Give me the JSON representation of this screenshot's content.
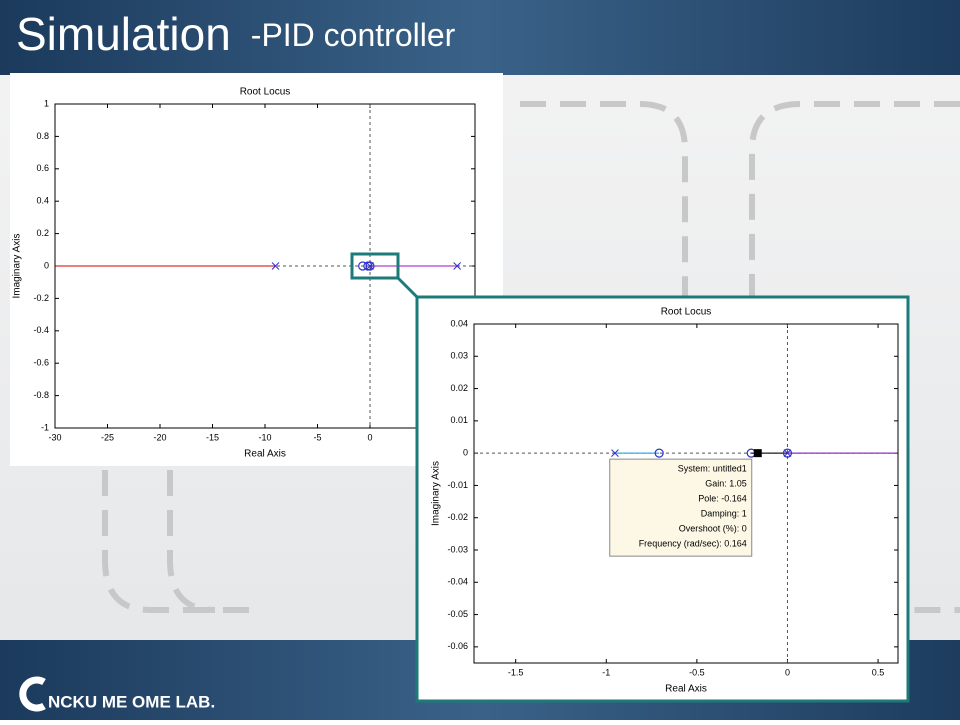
{
  "title": "Simulation",
  "subtitle": "-PID controller",
  "footer": "NCKU ME OME LAB.",
  "chart_data": [
    {
      "type": "root_locus",
      "title": "Root Locus",
      "x_label": "Real Axis",
      "y_label": "Imaginary Axis",
      "xlim": [
        -30,
        10
      ],
      "ylim": [
        -1,
        1
      ],
      "xticks": [
        -30,
        -25,
        -20,
        -15,
        -10,
        -5,
        0
      ],
      "yticks": [
        -1,
        -0.8,
        -0.6,
        -0.4,
        -0.2,
        0,
        0.2,
        0.4,
        0.6,
        0.8,
        1
      ],
      "branches": [
        {
          "color": "#e03030",
          "x": [
            -30,
            -9
          ],
          "values": [
            0,
            0
          ]
        },
        {
          "color": "#b040d0",
          "x": [
            0,
            8.3
          ],
          "values": [
            0,
            0
          ]
        }
      ],
      "poles": {
        "color": "#3030d0",
        "x": [
          -9,
          0,
          8.3
        ],
        "values": [
          0,
          0,
          0
        ]
      },
      "zeros": {
        "color": "#3030d0",
        "x": [
          -0.7,
          -0.2,
          0
        ],
        "values": [
          0,
          0,
          0
        ]
      }
    },
    {
      "type": "root_locus",
      "title": "Root Locus",
      "x_label": "Real Axis",
      "y_label": "Imaginary Axis",
      "xlim": [
        -1.73,
        0.61
      ],
      "ylim": [
        -0.065,
        0.04
      ],
      "xticks": [
        -1.5,
        -1,
        -0.5,
        0,
        0.5
      ],
      "yticks": [
        -0.06,
        -0.05,
        -0.04,
        -0.03,
        -0.02,
        -0.01,
        0,
        0.01,
        0.02,
        0.03,
        0.04
      ],
      "branches": [
        {
          "color": "#30b0e0",
          "x": [
            -0.952,
            -0.708
          ],
          "values": [
            0,
            0
          ]
        },
        {
          "color": "#202020",
          "x": [
            -0.2,
            0
          ],
          "values": [
            0,
            0
          ]
        },
        {
          "color": "#9030c0",
          "x": [
            0,
            0.61
          ],
          "values": [
            0,
            0
          ]
        }
      ],
      "poles": {
        "color": "#3030d0",
        "x": [
          -0.952,
          0
        ],
        "values": [
          0,
          0
        ]
      },
      "zeros": {
        "color": "#3030d0",
        "x": [
          -0.708,
          -0.2,
          0
        ],
        "values": [
          0,
          0,
          0
        ]
      },
      "datatip": {
        "x": -0.164,
        "value": 0,
        "lines": [
          "System: untitled1",
          "Gain: 1.05",
          "Pole: -0.164",
          "Damping: 1",
          "Overshoot (%): 0",
          "Frequency (rad/sec): 0.164"
        ]
      }
    }
  ]
}
